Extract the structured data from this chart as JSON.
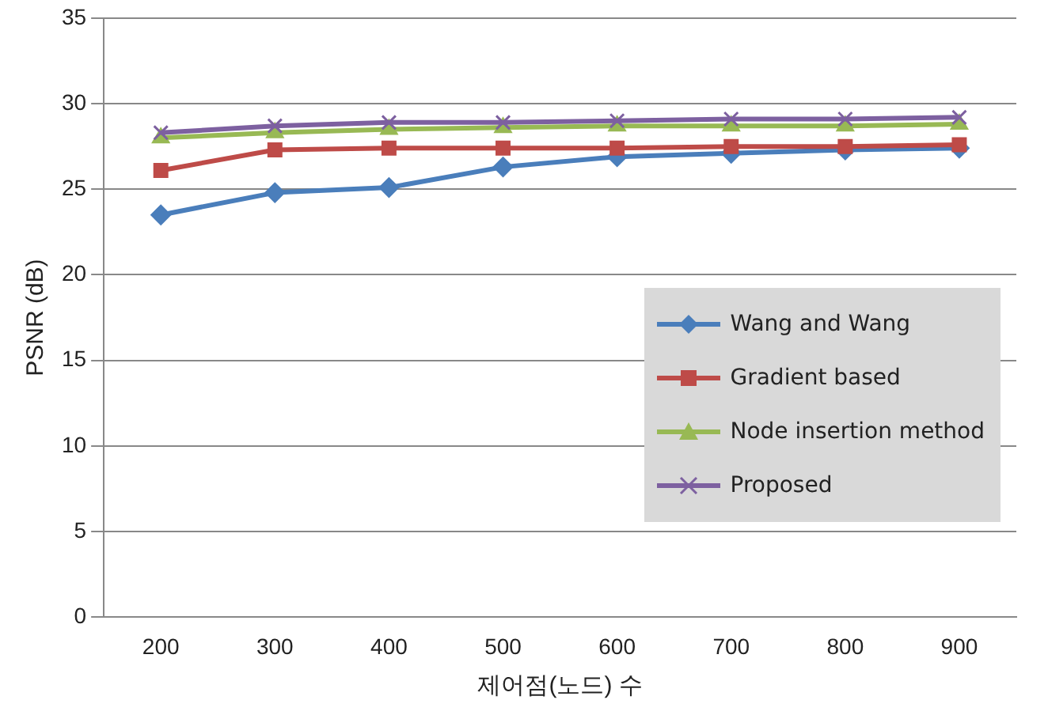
{
  "chart_data": {
    "type": "line",
    "xlabel": "제어점(노드) 수",
    "ylabel": "PSNR (dB)",
    "categories": [
      "200",
      "300",
      "400",
      "500",
      "600",
      "700",
      "800",
      "900"
    ],
    "series": [
      {
        "name": "Wang and Wang",
        "color": "#4a7ebb",
        "marker": "diamond",
        "values": [
          23.5,
          24.8,
          25.1,
          26.3,
          26.9,
          27.1,
          27.3,
          27.4
        ]
      },
      {
        "name": "Gradient based",
        "color": "#be4b48",
        "marker": "square",
        "values": [
          26.1,
          27.3,
          27.4,
          27.4,
          27.4,
          27.5,
          27.5,
          27.6
        ]
      },
      {
        "name": "Node insertion method",
        "color": "#98b954",
        "marker": "triangle",
        "values": [
          28.0,
          28.3,
          28.5,
          28.6,
          28.7,
          28.7,
          28.7,
          28.8
        ]
      },
      {
        "name": "Proposed",
        "color": "#7d60a0",
        "marker": "cross",
        "values": [
          28.3,
          28.7,
          28.9,
          28.9,
          29.0,
          29.1,
          29.1,
          29.2
        ]
      }
    ],
    "ylim": [
      0,
      35
    ],
    "yticks": [
      0,
      5,
      10,
      15,
      20,
      25,
      30,
      35
    ],
    "grid": "y",
    "legend": "right"
  }
}
